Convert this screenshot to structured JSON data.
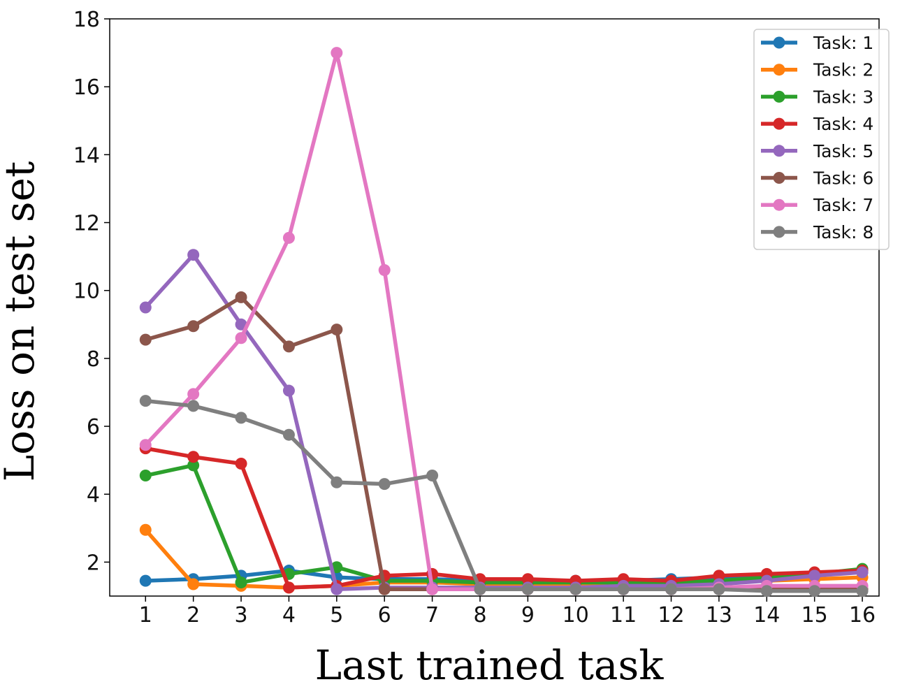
{
  "chart_data": {
    "type": "line",
    "xlabel": "Last trained task",
    "ylabel": "Loss on test set",
    "x": [
      1,
      2,
      3,
      4,
      5,
      6,
      7,
      8,
      9,
      10,
      11,
      12,
      13,
      14,
      15,
      16
    ],
    "xlim": [
      0.25,
      16.35
    ],
    "ylim": [
      1.0,
      18.0
    ],
    "yticks": [
      2,
      4,
      6,
      8,
      10,
      12,
      14,
      16,
      18
    ],
    "grid": false,
    "legend_position": "top-right",
    "series": [
      {
        "name": "Task: 1",
        "color": "#1f77b4",
        "values": [
          1.45,
          1.5,
          1.6,
          1.75,
          1.55,
          1.5,
          1.5,
          1.45,
          1.45,
          1.45,
          1.45,
          1.5,
          1.55,
          1.6,
          1.65,
          1.7
        ]
      },
      {
        "name": "Task: 2",
        "color": "#ff7f0e",
        "values": [
          2.95,
          1.35,
          1.3,
          1.25,
          1.3,
          1.4,
          1.4,
          1.35,
          1.35,
          1.35,
          1.35,
          1.35,
          1.4,
          1.45,
          1.5,
          1.55
        ]
      },
      {
        "name": "Task: 3",
        "color": "#2ca02c",
        "values": [
          4.55,
          4.85,
          1.4,
          1.65,
          1.85,
          1.45,
          1.45,
          1.4,
          1.4,
          1.4,
          1.4,
          1.4,
          1.45,
          1.55,
          1.65,
          1.8
        ]
      },
      {
        "name": "Task: 4",
        "color": "#d62728",
        "values": [
          5.35,
          5.1,
          4.9,
          1.25,
          1.3,
          1.6,
          1.65,
          1.5,
          1.5,
          1.45,
          1.5,
          1.45,
          1.6,
          1.65,
          1.7,
          1.75
        ]
      },
      {
        "name": "Task: 5",
        "color": "#9467bd",
        "values": [
          9.5,
          11.05,
          9.0,
          7.05,
          1.2,
          1.25,
          1.25,
          1.25,
          1.25,
          1.25,
          1.3,
          1.3,
          1.35,
          1.45,
          1.6,
          1.7
        ]
      },
      {
        "name": "Task: 6",
        "color": "#8c564b",
        "values": [
          8.55,
          8.95,
          9.8,
          8.35,
          8.85,
          1.2,
          1.2,
          1.2,
          1.2,
          1.2,
          1.2,
          1.2,
          1.2,
          1.2,
          1.2,
          1.2
        ]
      },
      {
        "name": "Task: 7",
        "color": "#e377c2",
        "values": [
          5.45,
          6.95,
          8.6,
          11.55,
          17.0,
          10.6,
          1.2,
          1.2,
          1.2,
          1.2,
          1.2,
          1.2,
          1.25,
          1.3,
          1.3,
          1.3
        ]
      },
      {
        "name": "Task: 8",
        "color": "#7f7f7f",
        "values": [
          6.75,
          6.6,
          6.25,
          5.75,
          4.35,
          4.3,
          4.55,
          1.2,
          1.2,
          1.2,
          1.2,
          1.2,
          1.2,
          1.15,
          1.15,
          1.15
        ]
      }
    ]
  }
}
